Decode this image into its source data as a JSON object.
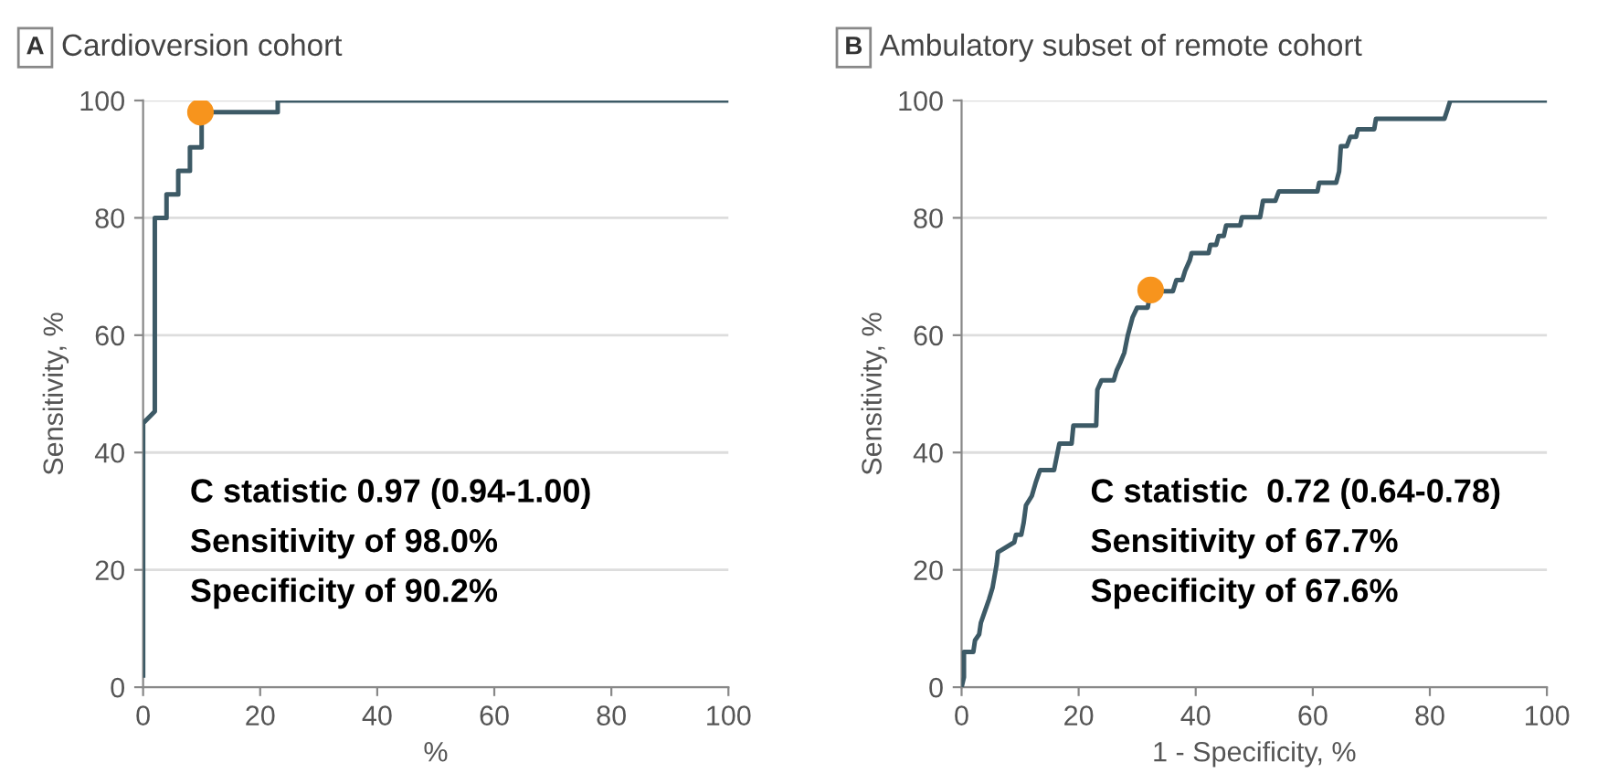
{
  "chart_data": [
    {
      "type": "line",
      "title": "Cardioversion cohort",
      "xlabel": "%",
      "ylabel": "Sensitivity, %",
      "xlim": [
        0,
        100
      ],
      "ylim": [
        0,
        100
      ],
      "xticks": [
        0,
        20,
        40,
        60,
        80,
        100
      ],
      "yticks": [
        0,
        20,
        40,
        60,
        80,
        100
      ],
      "grid": "y",
      "legend": false,
      "annotations": [
        "A",
        "C statistic 0.97 (0.94-1.00)",
        "Sensitivity of 98.0%",
        "Specificity of 90.2%"
      ],
      "series": [
        {
          "color": "#3d5a66",
          "line_style": "solid",
          "x": [
            0,
            0,
            1,
            2,
            2,
            4,
            4,
            6,
            6,
            8,
            8,
            10,
            10,
            23,
            23,
            100
          ],
          "values": [
            2,
            45,
            46,
            47,
            80,
            80,
            84,
            84,
            88,
            88,
            92,
            92,
            98,
            98,
            100,
            100
          ]
        },
        {
          "type": "scatter",
          "color": "#f7941d",
          "marker": "circle",
          "x": [
            9.8
          ],
          "values": [
            98.0
          ]
        }
      ]
    },
    {
      "type": "line",
      "title": "Ambulatory subset of remote cohort",
      "xlabel": "1 - Specificity, %",
      "ylabel": "Sensitivity, %",
      "xlim": [
        0,
        100
      ],
      "ylim": [
        0,
        100
      ],
      "xticks": [
        0,
        20,
        40,
        60,
        80,
        100
      ],
      "yticks": [
        0,
        20,
        40,
        60,
        80,
        100
      ],
      "grid": "y",
      "legend": false,
      "annotations": [
        "B",
        "C statistic  0.72 (0.64-0.78)",
        "Sensitivity of 67.7%",
        "Specificity of 67.6%"
      ],
      "series": [
        {
          "color": "#3d5a66",
          "line_style": "solid",
          "x": [
            0,
            0.4,
            0.4,
            2,
            2.3,
            3,
            3.3,
            4,
            4.7,
            5.3,
            6,
            6.2,
            9,
            9.3,
            10.2,
            10.6,
            11,
            12,
            12.7,
            13.4,
            15.8,
            16.4,
            16.7,
            18.8,
            19.1,
            23,
            23.2,
            23.9,
            26,
            26.5,
            27.1,
            27.8,
            28.4,
            29.2,
            30,
            31.8,
            32.3,
            36.1,
            36.7,
            37.7,
            38.2,
            39,
            39.3,
            42.2,
            42.5,
            43.5,
            43.9,
            44.8,
            45.2,
            47.6,
            47.9,
            51,
            51.5,
            53.6,
            54.2,
            60.8,
            61.1,
            64,
            64.5,
            64.8,
            65.8,
            66.4,
            67.4,
            67.7,
            70.5,
            70.8,
            82.5,
            83,
            83.5,
            100
          ],
          "values": [
            0,
            1.7,
            6,
            6,
            8,
            9,
            11,
            13,
            15,
            17,
            21,
            23,
            24.7,
            26,
            26,
            28,
            31,
            32.6,
            35,
            37,
            37,
            40,
            41.5,
            41.5,
            44.6,
            44.6,
            50.7,
            52.3,
            52.3,
            54,
            55.3,
            57,
            60,
            63,
            64.7,
            64.7,
            67.5,
            67.5,
            69.4,
            69.4,
            71,
            72.8,
            74,
            74,
            75.4,
            75.4,
            76.9,
            76.9,
            78.7,
            78.7,
            80.1,
            80.1,
            82.9,
            82.9,
            84.5,
            84.5,
            86,
            86,
            87.9,
            92.2,
            92.2,
            93.8,
            93.8,
            95.1,
            95.1,
            96.9,
            96.9,
            98.4,
            100,
            100
          ]
        },
        {
          "type": "scatter",
          "color": "#f7941d",
          "marker": "circle",
          "x": [
            32.3
          ],
          "values": [
            67.7
          ]
        }
      ]
    }
  ]
}
